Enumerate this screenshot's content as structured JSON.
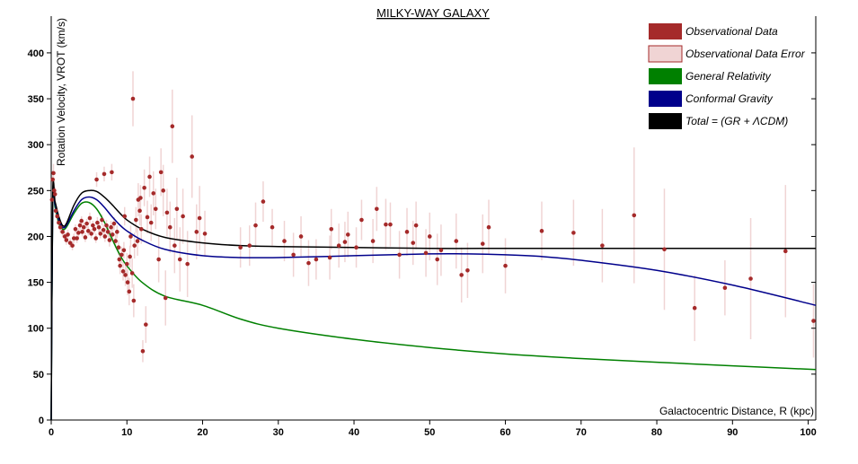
{
  "chart_data": {
    "type": "scatter",
    "title": "MILKY-WAY GALAXY",
    "xlabel": "Galactocentric Distance, R (kpc)",
    "ylabel": "Rotation Velocity, VROT (km/s)",
    "xlim": [
      0,
      101
    ],
    "ylim": [
      0,
      440
    ],
    "x_ticks": [
      0,
      10,
      20,
      30,
      40,
      50,
      60,
      70,
      80,
      90,
      100
    ],
    "y_ticks": [
      0,
      50,
      100,
      150,
      200,
      250,
      300,
      350,
      400
    ],
    "legend_position": "top-right",
    "legend": [
      {
        "label": "Observational Data",
        "color": "#a52a2a"
      },
      {
        "label": "Observational Data Error",
        "color": "#f0d4d4"
      },
      {
        "label": "General Relativity",
        "color": "#008000"
      },
      {
        "label": "Conformal Gravity",
        "color": "#00008b"
      },
      {
        "label": "Total = (GR + ΛCDM)",
        "color": "#000000"
      }
    ],
    "series": [
      {
        "name": "General Relativity",
        "color": "#008000",
        "x": [
          0,
          0.2,
          0.5,
          1,
          1.5,
          2,
          3,
          4,
          5,
          6,
          7,
          8,
          9,
          10,
          12,
          15,
          20,
          25,
          30,
          40,
          50,
          60,
          70,
          80,
          90,
          101
        ],
        "y": [
          0,
          240,
          232,
          215,
          208,
          210,
          225,
          236,
          237,
          230,
          216,
          198,
          181,
          168,
          150,
          135,
          125,
          110,
          100,
          88,
          79,
          72,
          67,
          63,
          59,
          55
        ]
      },
      {
        "name": "Conformal Gravity",
        "color": "#00008b",
        "x": [
          0,
          0.2,
          0.5,
          1,
          1.5,
          2,
          3,
          4,
          5,
          6,
          7,
          8,
          9,
          10,
          12,
          15,
          20,
          25,
          30,
          40,
          50,
          55,
          60,
          65,
          70,
          80,
          90,
          101
        ],
        "y": [
          0,
          240,
          235,
          218,
          210,
          212,
          228,
          240,
          243,
          240,
          232,
          222,
          213,
          206,
          196,
          186,
          179,
          177,
          177,
          179,
          181,
          181,
          180,
          178,
          174,
          163,
          147,
          125
        ]
      },
      {
        "name": "Total = (GR + ΛCDM)",
        "color": "#000000",
        "x": [
          0,
          0.2,
          0.5,
          1,
          1.5,
          2,
          3,
          4,
          5,
          6,
          7,
          8,
          9,
          10,
          12,
          15,
          20,
          25,
          30,
          40,
          50,
          60,
          70,
          80,
          90,
          101
        ],
        "y": [
          0,
          245,
          238,
          222,
          212,
          214,
          234,
          247,
          250,
          249,
          243,
          235,
          226,
          218,
          208,
          199,
          193,
          190,
          189,
          188,
          187,
          187,
          187,
          187,
          187,
          187
        ]
      }
    ],
    "observational_data": {
      "name": "Observational Data",
      "error_name": "Observational Data Error",
      "points": [
        [
          0.1,
          240,
          0
        ],
        [
          0.2,
          262,
          10
        ],
        [
          0.3,
          269,
          10
        ],
        [
          0.4,
          250,
          8
        ],
        [
          0.5,
          246,
          8
        ],
        [
          0.6,
          228,
          6
        ],
        [
          0.8,
          222,
          6
        ],
        [
          1.0,
          215,
          5
        ],
        [
          1.2,
          210,
          6
        ],
        [
          1.5,
          205,
          6
        ],
        [
          1.8,
          200,
          5
        ],
        [
          2.0,
          196,
          5
        ],
        [
          2.2,
          202,
          5
        ],
        [
          2.5,
          193,
          5
        ],
        [
          2.8,
          190,
          5
        ],
        [
          3.0,
          198,
          5
        ],
        [
          3.2,
          208,
          5
        ],
        [
          3.4,
          198,
          5
        ],
        [
          3.6,
          204,
          5
        ],
        [
          3.8,
          212,
          5
        ],
        [
          4.0,
          217,
          5
        ],
        [
          4.1,
          205,
          5
        ],
        [
          4.3,
          210,
          5
        ],
        [
          4.5,
          199,
          5
        ],
        [
          4.7,
          214,
          5
        ],
        [
          4.9,
          206,
          5
        ],
        [
          5.1,
          220,
          6
        ],
        [
          5.3,
          203,
          5
        ],
        [
          5.5,
          212,
          5
        ],
        [
          5.7,
          208,
          5
        ],
        [
          5.9,
          198,
          5
        ],
        [
          6.1,
          215,
          6
        ],
        [
          6.3,
          210,
          6
        ],
        [
          6.5,
          203,
          5
        ],
        [
          6.7,
          218,
          6
        ],
        [
          6.9,
          207,
          6
        ],
        [
          7.1,
          200,
          6
        ],
        [
          7.3,
          212,
          6
        ],
        [
          7.5,
          205,
          6
        ],
        [
          7.7,
          196,
          7
        ],
        [
          7.9,
          210,
          7
        ],
        [
          8.1,
          202,
          7
        ],
        [
          8.3,
          214,
          7
        ],
        [
          8.5,
          195,
          7
        ],
        [
          8.7,
          205,
          7
        ],
        [
          8.9,
          188,
          8
        ],
        [
          9.0,
          175,
          8
        ],
        [
          9.1,
          168,
          9
        ],
        [
          9.3,
          180,
          9
        ],
        [
          9.5,
          162,
          10
        ],
        [
          9.6,
          185,
          9
        ],
        [
          9.8,
          158,
          12
        ],
        [
          10.0,
          170,
          12
        ],
        [
          10.1,
          150,
          14
        ],
        [
          10.3,
          140,
          15
        ],
        [
          10.4,
          178,
          12
        ],
        [
          10.5,
          200,
          12
        ],
        [
          10.7,
          160,
          16
        ],
        [
          10.9,
          130,
          18
        ],
        [
          11.0,
          190,
          14
        ],
        [
          11.2,
          218,
          14
        ],
        [
          11.4,
          195,
          16
        ],
        [
          11.5,
          240,
          18
        ],
        [
          11.7,
          228,
          16
        ],
        [
          11.9,
          208,
          16
        ],
        [
          12.1,
          75,
          12
        ],
        [
          12.3,
          253,
          20
        ],
        [
          12.5,
          104,
          20
        ],
        [
          12.7,
          221,
          18
        ],
        [
          13.0,
          265,
          22
        ],
        [
          13.2,
          215,
          20
        ],
        [
          13.5,
          247,
          24
        ],
        [
          13.8,
          230,
          22
        ],
        [
          14.2,
          175,
          25
        ],
        [
          14.5,
          270,
          26
        ],
        [
          14.8,
          250,
          28
        ],
        [
          15.1,
          133,
          30
        ],
        [
          15.3,
          226,
          26
        ],
        [
          15.7,
          210,
          28
        ],
        [
          16.0,
          320,
          40
        ],
        [
          16.3,
          190,
          30
        ],
        [
          16.6,
          230,
          34
        ],
        [
          17.0,
          175,
          35
        ],
        [
          17.4,
          222,
          30
        ],
        [
          18.0,
          170,
          36
        ],
        [
          18.6,
          287,
          45
        ],
        [
          19.2,
          205,
          30
        ],
        [
          19.6,
          220,
          35
        ],
        [
          20.3,
          203,
          25
        ],
        [
          6.0,
          262,
          8
        ],
        [
          7.0,
          268,
          8
        ],
        [
          8.0,
          270,
          9
        ],
        [
          10.8,
          350,
          30
        ],
        [
          9.7,
          222,
          10
        ],
        [
          11.8,
          242,
          14
        ],
        [
          25,
          188,
          22
        ],
        [
          26.2,
          190,
          22
        ],
        [
          27.0,
          212,
          25
        ],
        [
          28.0,
          238,
          22
        ],
        [
          29.2,
          210,
          20
        ],
        [
          30.8,
          195,
          22
        ],
        [
          32.0,
          180,
          24
        ],
        [
          33.0,
          200,
          22
        ],
        [
          34.0,
          171,
          25
        ],
        [
          35.0,
          175,
          22
        ],
        [
          36.8,
          177,
          24
        ],
        [
          37.0,
          208,
          22
        ],
        [
          38.0,
          190,
          24
        ],
        [
          38.8,
          194,
          22
        ],
        [
          39.2,
          202,
          25
        ],
        [
          40.3,
          188,
          22
        ],
        [
          41.0,
          218,
          22
        ],
        [
          42.5,
          195,
          24
        ],
        [
          43.0,
          230,
          24
        ],
        [
          44.2,
          213,
          28
        ],
        [
          44.8,
          213,
          24
        ],
        [
          46.0,
          180,
          26
        ],
        [
          47.0,
          205,
          26
        ],
        [
          47.8,
          193,
          24
        ],
        [
          48.2,
          212,
          26
        ],
        [
          49.5,
          182,
          26
        ],
        [
          50.0,
          200,
          26
        ],
        [
          51.0,
          175,
          28
        ],
        [
          51.5,
          185,
          28
        ],
        [
          53.5,
          195,
          30
        ],
        [
          54.2,
          158,
          30
        ],
        [
          55.0,
          163,
          30
        ],
        [
          57.0,
          192,
          32
        ],
        [
          57.8,
          210,
          30
        ],
        [
          60.0,
          168,
          30
        ],
        [
          64.8,
          206,
          32
        ],
        [
          69.0,
          204,
          36
        ],
        [
          72.8,
          190,
          40
        ],
        [
          77.0,
          223,
          74
        ],
        [
          81.0,
          186,
          66
        ],
        [
          85.0,
          122,
          36
        ],
        [
          89.0,
          144,
          30
        ],
        [
          92.4,
          154,
          66
        ],
        [
          97.0,
          184,
          72
        ],
        [
          100.7,
          108,
          40
        ]
      ]
    }
  }
}
